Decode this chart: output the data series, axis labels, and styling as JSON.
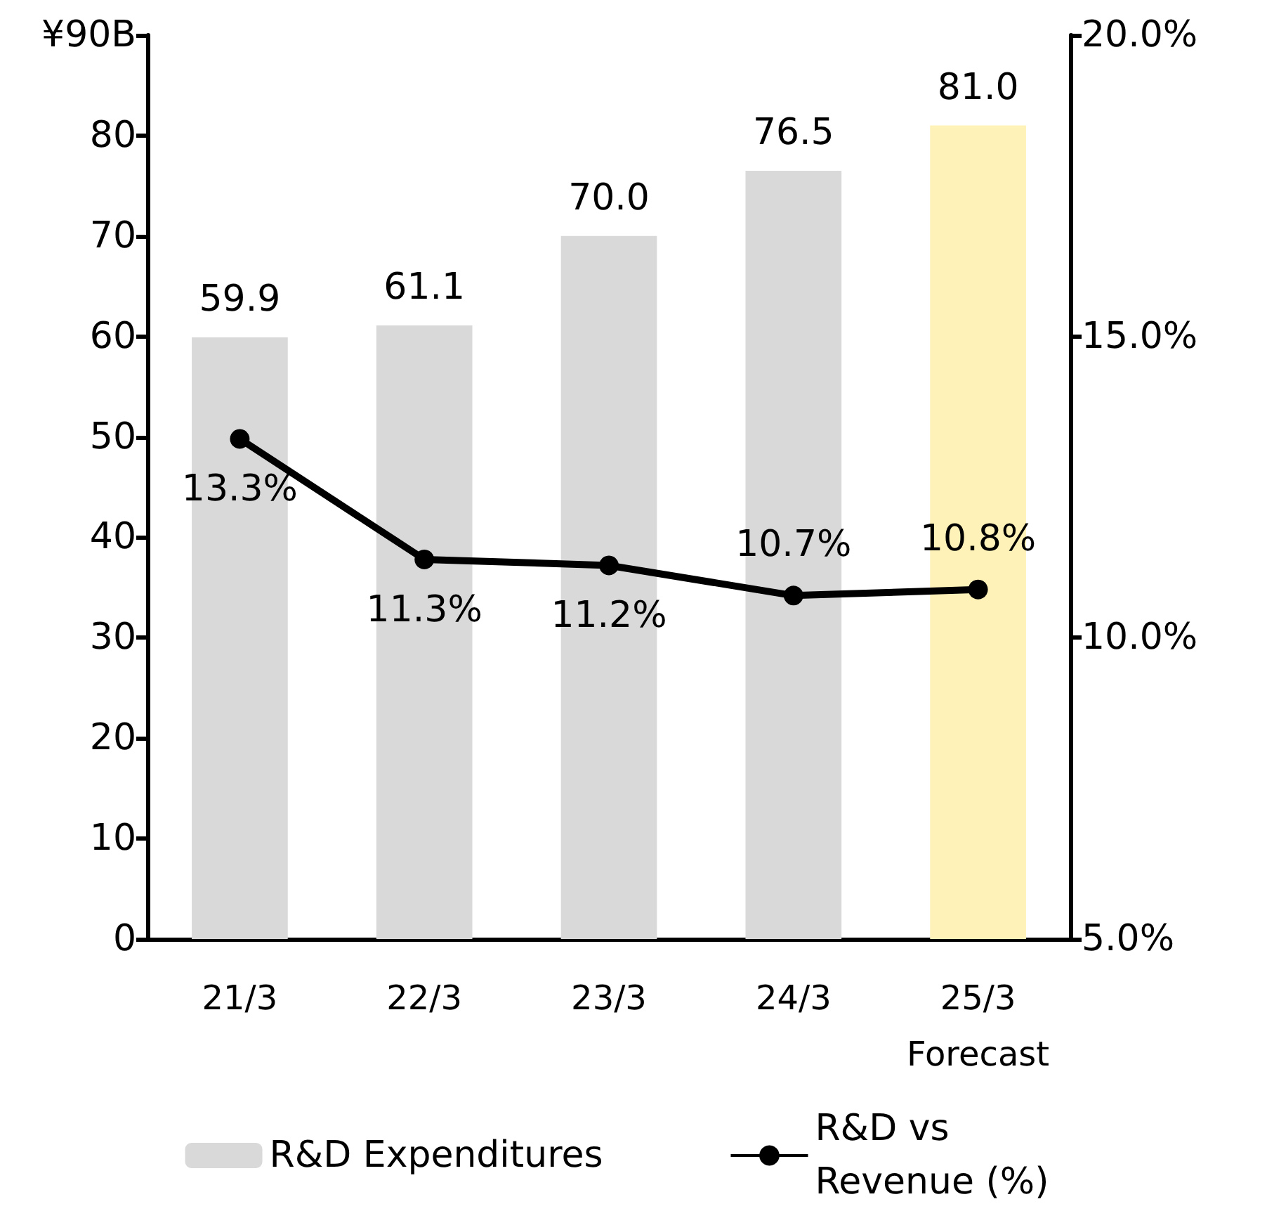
{
  "chart_data": {
    "type": "bar",
    "categories": [
      "21/3",
      "22/3",
      "23/3",
      "24/3",
      "25/3\nForecast"
    ],
    "series": [
      {
        "name": "R&D Expenditures",
        "color": "#d9d9d9",
        "colors": [
          "#d9d9d9",
          "#d9d9d9",
          "#d9d9d9",
          "#d9d9d9",
          "#fff2b8"
        ],
        "values": [
          59.9,
          61.1,
          70.0,
          76.5,
          81.0
        ],
        "value_labels": [
          "59.9",
          "61.1",
          "70.0",
          "76.5",
          "81.0"
        ]
      },
      {
        "name": "R&D vs Revenue (%)",
        "type": "line",
        "axis": "y2",
        "color": "#000000",
        "values": [
          13.3,
          11.3,
          11.2,
          10.7,
          10.8
        ],
        "value_labels": [
          "13.3%",
          "11.3%",
          "11.2%",
          "10.7%",
          "10.8%"
        ]
      }
    ],
    "ylim": [
      0,
      90
    ],
    "yticks": [
      0,
      10,
      20,
      30,
      40,
      50,
      60,
      70,
      80,
      {
        "value": 90,
        "label": "¥90B"
      }
    ],
    "y2lim": [
      5,
      20
    ],
    "y2ticks": [
      {
        "value": 5,
        "label": "5.0%"
      },
      {
        "value": 10,
        "label": "10.0%"
      },
      {
        "value": 15,
        "label": "15.0%"
      },
      {
        "value": 20,
        "label": "20.0%"
      }
    ],
    "grid": false,
    "legend": "bottom",
    "marker": "circle",
    "line_style": "solid"
  }
}
